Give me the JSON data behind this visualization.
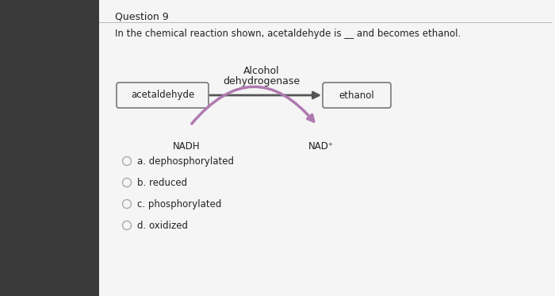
{
  "title": "Question 9",
  "subtitle": "In the chemical reaction shown, acetaldehyde is __ and becomes ethanol.",
  "enzyme_label_line1": "Alcohol",
  "enzyme_label_line2": "dehydrogenase",
  "box_left_label": "acetaldehyde",
  "box_right_label": "ethanol",
  "nadh_label": "NADH",
  "nad_label": "NAD⁺",
  "options": [
    "a. dephosphorylated",
    "b. reduced",
    "c. phosphorylated",
    "d. oxidized"
  ],
  "dark_bg_color": "#3a3a3a",
  "panel_color": "#f5f5f5",
  "box_color": "#f5f5f5",
  "box_edge_color": "#777777",
  "arrow_main_color": "#555555",
  "arrow_curve_color": "#b07ab0",
  "text_color": "#222222",
  "title_fontsize": 9,
  "subtitle_fontsize": 8.5,
  "label_fontsize": 8.5,
  "option_fontsize": 8.5,
  "enzyme_fontsize": 9
}
